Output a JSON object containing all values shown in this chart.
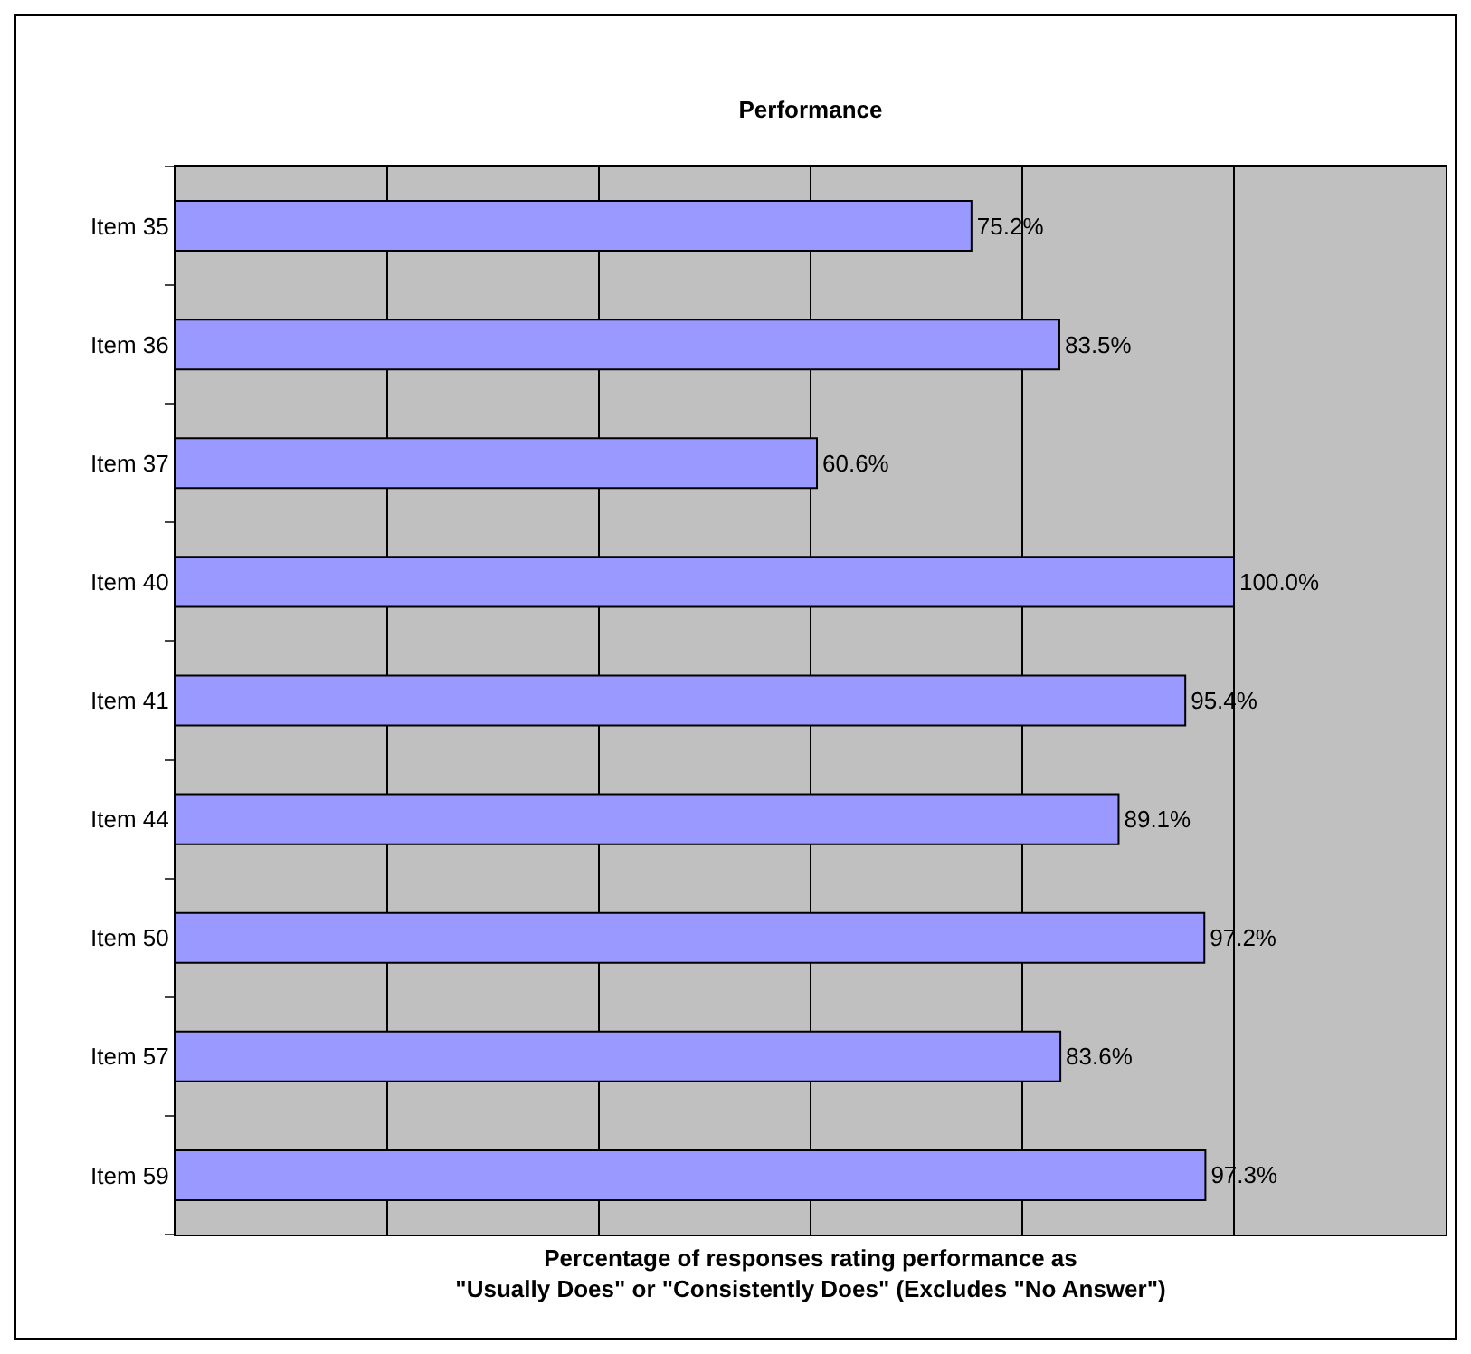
{
  "chart_data": {
    "type": "bar",
    "orientation": "horizontal",
    "title": "Performance",
    "xlabel": "Percentage of responses rating performance as\n\"Usually Does\" or \"Consistently Does\" (Excludes \"No Answer\")",
    "categories": [
      "Item 35",
      "Item 36",
      "Item 37",
      "Item 40",
      "Item 41",
      "Item 44",
      "Item 50",
      "Item 57",
      "Item 59"
    ],
    "values": [
      75.2,
      83.5,
      60.6,
      100.0,
      95.4,
      89.1,
      97.2,
      83.6,
      97.3
    ],
    "value_labels": [
      "75.2%",
      "83.5%",
      "60.6%",
      "100.0%",
      "95.4%",
      "89.1%",
      "97.2%",
      "83.6%",
      "97.3%"
    ],
    "color": "#9999ff",
    "xlim": [
      0,
      120
    ],
    "xticks": [
      {
        "value": 0,
        "label": null
      },
      {
        "value": 20,
        "label": null
      },
      {
        "value": 40,
        "label": null
      },
      {
        "value": 60,
        "label": null
      },
      {
        "value": 80,
        "label": null
      },
      {
        "value": 100,
        "label": null
      },
      {
        "value": 120,
        "label": null
      }
    ],
    "tick_labels": "y",
    "grid": "x",
    "legend": false
  }
}
